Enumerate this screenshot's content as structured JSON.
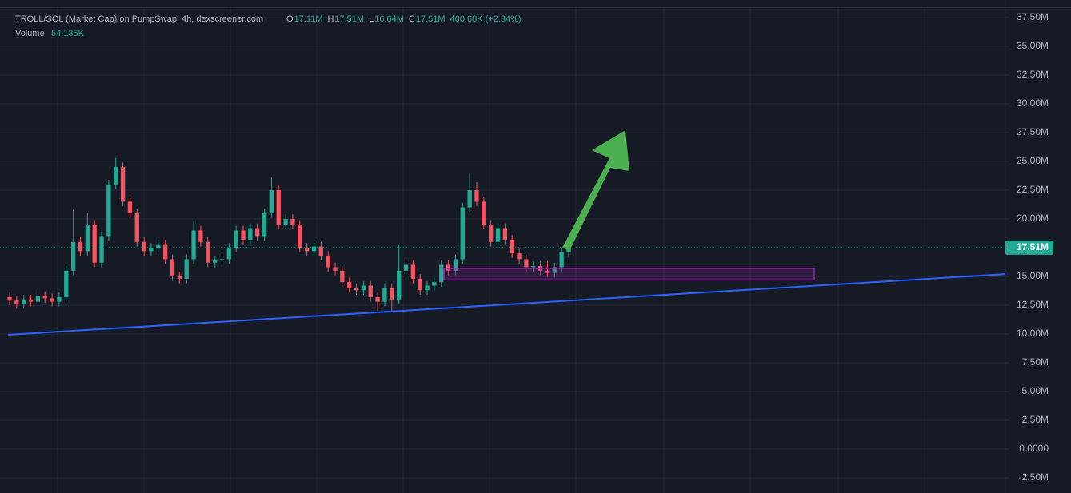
{
  "chart_data": {
    "type": "candlestick",
    "title": "TROLL/SOL (Market Cap) on PumpSwap, 4h, dexscreener.com",
    "ohlc_legend": [
      {
        "key": "O",
        "label": "17.11M"
      },
      {
        "key": "H",
        "label": "17.51M"
      },
      {
        "key": "L",
        "label": "16.64M"
      },
      {
        "key": "C",
        "label": "17.51M"
      }
    ],
    "change_label": "400.68K (+2.34%)",
    "volume_key": "Volume",
    "volume_label": "54.135K",
    "up_color": "#22ab94",
    "down_color": "#f7525f",
    "open": [
      13.2,
      12.9,
      12.6,
      13.0,
      12.8,
      13.3,
      13.1,
      12.8,
      13.2,
      15.5,
      18.0,
      17.2,
      19.5,
      16.2,
      18.5,
      23.0,
      24.5,
      21.5,
      20.5,
      18.0,
      17.2,
      17.5,
      17.8,
      16.5,
      15.0,
      14.8,
      16.5,
      19.0,
      18.0,
      16.2,
      16.4,
      16.5,
      17.5,
      19.0,
      18.2,
      19.2,
      18.5,
      20.5,
      22.5,
      19.5,
      20.0,
      19.5,
      17.5,
      17.2,
      17.6,
      16.8,
      15.8,
      15.5,
      14.5,
      14.0,
      13.8,
      14.2,
      13.2,
      12.8,
      14.0,
      13.0,
      15.5,
      16.0,
      14.8,
      13.8,
      14.2,
      14.5,
      16.0,
      15.5,
      16.5,
      21.0,
      22.5,
      21.5,
      19.5,
      18.0,
      19.2,
      18.2,
      17.0,
      16.5,
      15.8,
      15.9,
      15.5,
      15.3,
      15.8,
      17.11
    ],
    "high": [
      13.6,
      13.3,
      13.4,
      13.4,
      13.7,
      13.7,
      13.5,
      13.6,
      15.9,
      20.8,
      18.4,
      20.5,
      19.9,
      18.9,
      23.4,
      25.3,
      24.9,
      21.9,
      20.9,
      18.4,
      17.9,
      18.2,
      18.2,
      16.9,
      15.4,
      16.9,
      19.8,
      19.4,
      18.4,
      16.8,
      16.9,
      17.9,
      19.4,
      19.4,
      19.6,
      19.6,
      20.9,
      23.6,
      22.9,
      20.4,
      20.4,
      19.9,
      17.9,
      18.0,
      18.0,
      17.2,
      16.2,
      15.9,
      14.9,
      14.4,
      14.6,
      14.6,
      13.6,
      14.4,
      14.4,
      17.8,
      16.4,
      16.4,
      15.2,
      14.6,
      14.9,
      16.4,
      16.4,
      16.9,
      21.4,
      24.0,
      23.2,
      21.9,
      19.9,
      19.6,
      19.6,
      18.6,
      17.4,
      16.9,
      16.3,
      16.3,
      16.3,
      16.2,
      17.5,
      17.51
    ],
    "low": [
      12.5,
      12.2,
      12.2,
      12.4,
      12.4,
      12.7,
      12.4,
      12.4,
      12.8,
      15.1,
      16.8,
      16.8,
      15.8,
      15.8,
      18.1,
      22.6,
      21.1,
      20.1,
      17.6,
      16.8,
      16.8,
      17.1,
      16.1,
      14.6,
      14.4,
      14.4,
      16.1,
      17.6,
      15.8,
      15.8,
      16.1,
      16.1,
      17.1,
      17.8,
      17.8,
      18.1,
      18.1,
      20.1,
      19.1,
      19.1,
      19.1,
      17.1,
      16.8,
      16.8,
      16.4,
      15.4,
      15.1,
      14.1,
      13.6,
      13.4,
      13.4,
      12.8,
      12.0,
      12.4,
      12.0,
      12.6,
      15.1,
      14.4,
      13.4,
      13.4,
      13.8,
      14.1,
      15.1,
      15.1,
      16.1,
      20.6,
      21.1,
      19.1,
      17.6,
      17.6,
      17.8,
      16.6,
      16.1,
      15.4,
      15.4,
      15.1,
      14.9,
      14.9,
      15.4,
      16.64
    ],
    "close": [
      12.9,
      12.6,
      13.0,
      12.8,
      13.3,
      13.1,
      12.8,
      13.2,
      15.5,
      18.0,
      17.2,
      19.5,
      16.2,
      18.5,
      23.0,
      24.5,
      21.5,
      20.5,
      18.0,
      17.2,
      17.5,
      17.8,
      16.5,
      15.0,
      14.8,
      16.5,
      19.0,
      18.0,
      16.2,
      16.4,
      16.5,
      17.5,
      19.0,
      18.2,
      19.2,
      18.5,
      20.5,
      22.5,
      19.5,
      20.0,
      19.5,
      17.5,
      17.2,
      17.6,
      16.8,
      15.8,
      15.5,
      14.5,
      14.0,
      13.8,
      14.2,
      13.2,
      12.8,
      14.0,
      13.0,
      15.5,
      16.0,
      14.8,
      13.8,
      14.2,
      14.5,
      16.0,
      15.5,
      16.5,
      21.0,
      22.5,
      21.5,
      19.5,
      18.0,
      19.2,
      18.2,
      17.0,
      16.5,
      15.8,
      15.9,
      15.5,
      15.3,
      15.8,
      17.11,
      17.51
    ],
    "ylim": [
      -3.82,
      38.33
    ],
    "yticks": [
      {
        "value": 37.5,
        "label": "37.50M"
      },
      {
        "value": 35,
        "label": "35.00M"
      },
      {
        "value": 32.5,
        "label": "32.50M"
      },
      {
        "value": 30,
        "label": "30.00M"
      },
      {
        "value": 27.5,
        "label": "27.50M"
      },
      {
        "value": 25,
        "label": "25.00M"
      },
      {
        "value": 22.5,
        "label": "22.50M"
      },
      {
        "value": 20,
        "label": "20.00M"
      },
      {
        "value": 17.5,
        "label": "17.50M"
      },
      {
        "value": 15,
        "label": "15.00M"
      },
      {
        "value": 12.5,
        "label": "12.50M"
      },
      {
        "value": 10,
        "label": "10.00M"
      },
      {
        "value": 7.5,
        "label": "7.50M"
      },
      {
        "value": 5,
        "label": "5.00M"
      },
      {
        "value": 2.5,
        "label": "2.50M"
      },
      {
        "value": 0,
        "label": "0.0000"
      },
      {
        "value": -2.5,
        "label": "-2.50M"
      }
    ],
    "grid": true,
    "last_price": {
      "value": 17.51,
      "label": "17.51M",
      "color": "#22ab94"
    },
    "trendline": {
      "start": 9.93,
      "end": 15.2,
      "color": "#2962ff"
    },
    "zone": {
      "top": 15.7,
      "bottom": 14.7,
      "color": "#9c27b0"
    }
  }
}
